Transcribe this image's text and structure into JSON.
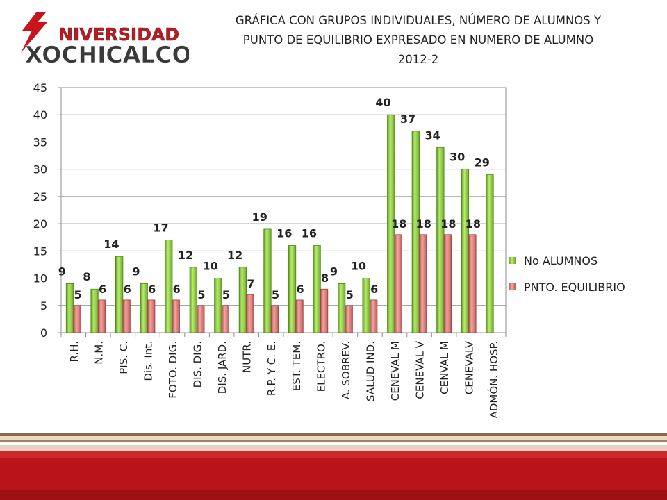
{
  "logo": {
    "line1": "NIVERSIDAD",
    "line2": "XOCHICALCO",
    "colors": {
      "red": "#c8141c",
      "gray": "#3a3a3a"
    }
  },
  "chart_data": {
    "type": "bar",
    "title_lines": [
      "GRÁFICA CON GRUPOS INDIVIDUALES, NÚMERO DE ALUMNOS Y",
      "PUNTO DE EQUILIBRIO EXPRESADO EN NUMERO DE ALUMNO",
      "2012-2"
    ],
    "categories": [
      "R.H.",
      "N.M.",
      "PIS. C.",
      "Dis. Int.",
      "FOTO. DIG.",
      "DIS. DIG.",
      "DIS. JARD.",
      "NUTR.",
      "R.P. Y C. E.",
      "EST. TEM.",
      "ELECTRO.",
      "A. SOBREV.",
      "SALUD IND.",
      "CENEVAL M",
      "CENEVAL V",
      "CENVAL M",
      "CENEVALV",
      "ADMÓN. HOSP."
    ],
    "series": [
      {
        "name": "No ALUMNOS",
        "color": "#8dc63f",
        "values": [
          9,
          8,
          14,
          9,
          17,
          12,
          10,
          12,
          19,
          16,
          16,
          9,
          10,
          40,
          37,
          34,
          30,
          29
        ]
      },
      {
        "name": "PNTO. EQUILIBRIO",
        "color": "#d97a78",
        "values": [
          5,
          6,
          6,
          6,
          6,
          5,
          5,
          7,
          5,
          6,
          8,
          5,
          6,
          18,
          18,
          18,
          18,
          null
        ]
      }
    ],
    "ylim": [
      0,
      45
    ],
    "yticks": [
      0,
      5,
      10,
      15,
      20,
      25,
      30,
      35,
      40,
      45
    ],
    "xlabel": "",
    "ylabel": "",
    "grid": true,
    "legend_position": "right"
  }
}
